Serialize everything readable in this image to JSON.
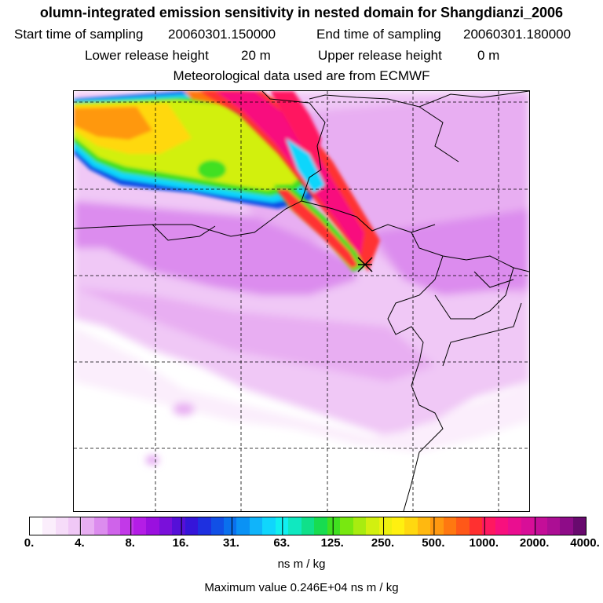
{
  "title": "olumn-integrated emission sensitivity in nested domain for Shangdianzi_2006",
  "start_label": "Start time of sampling",
  "start_value": "20060301.150000",
  "end_label": "End time of sampling",
  "end_value": "20060301.180000",
  "lower_label": "Lower release height",
  "lower_value": "20 m",
  "upper_label": "Upper release height",
  "upper_value": "0 m",
  "met_text": "Meteorological data used are from ECMWF",
  "colorbar": {
    "ticks": [
      "0.",
      "4.",
      "8.",
      "16.",
      "31.",
      "63.",
      "125.",
      "250.",
      "500.",
      "1000.",
      "2000.",
      "4000."
    ],
    "colors": [
      "#ffffff",
      "#fbeefc",
      "#f6dcf9",
      "#f0c8f6",
      "#e8aef2",
      "#dc8cee",
      "#cf63ea",
      "#c239e8",
      "#b41de6",
      "#9a10df",
      "#7a10da",
      "#5510d8",
      "#3515d9",
      "#1e30e0",
      "#1150e6",
      "#0a70ee",
      "#0a92f5",
      "#10b4fa",
      "#10d6fc",
      "#10f0f0",
      "#10e8c0",
      "#10e08a",
      "#18dc50",
      "#40e020",
      "#78e810",
      "#a8ec10",
      "#d2f010",
      "#eef010",
      "#fff010",
      "#ffd810",
      "#ffb810",
      "#ff9810",
      "#ff7810",
      "#ff5818",
      "#ff3030",
      "#ff1860",
      "#f8107e",
      "#ea0e90",
      "#d80e98",
      "#c40e98",
      "#ac0e94",
      "#8e0c88",
      "#680a6e"
    ],
    "unit": "ns m / kg"
  },
  "max_value_text": "Maximum value  0.246E+04 ns m / kg"
}
